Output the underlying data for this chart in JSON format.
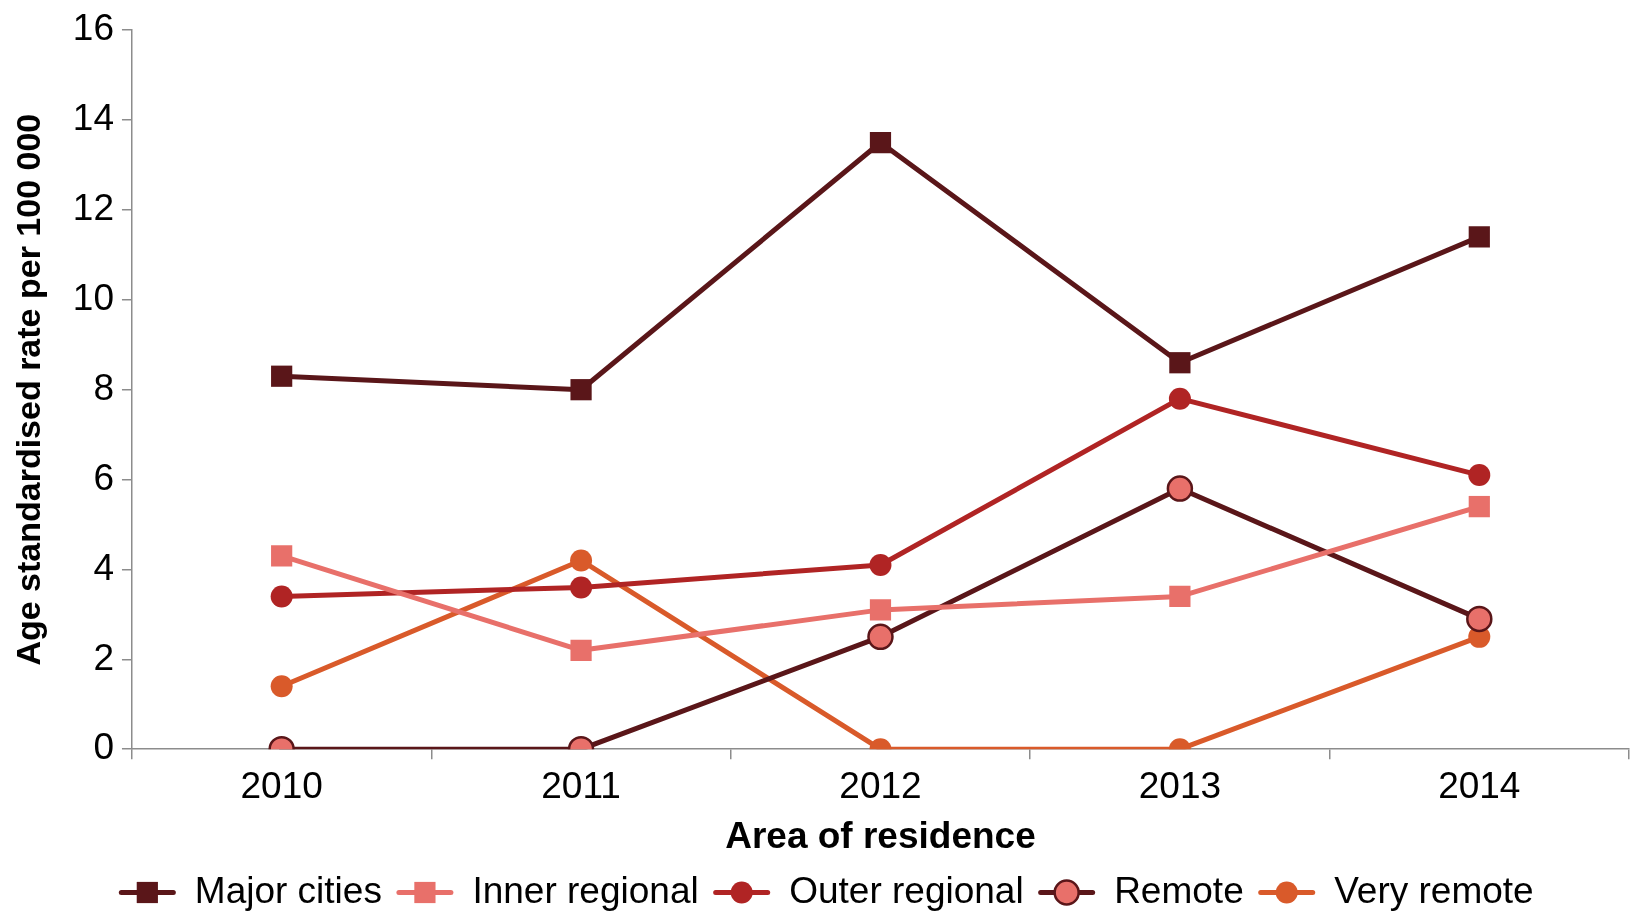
{
  "chart_data": {
    "type": "line",
    "xlabel": "Area of residence",
    "ylabel": "Age standardised rate per 100 000",
    "categories": [
      "2010",
      "2011",
      "2012",
      "2013",
      "2014"
    ],
    "series": [
      {
        "name": "Major cities",
        "color": "#5a1619",
        "marker": "square",
        "values": [
          8.3,
          8.0,
          13.5,
          8.6,
          11.4
        ]
      },
      {
        "name": "Inner regional",
        "color": "#e8706a",
        "marker": "square",
        "values": [
          4.3,
          2.2,
          3.1,
          3.4,
          5.4
        ]
      },
      {
        "name": "Outer regional",
        "color": "#b02424",
        "marker": "circle",
        "values": [
          3.4,
          3.6,
          4.1,
          7.8,
          6.1
        ]
      },
      {
        "name": "Remote",
        "color": "#5a1619",
        "colors": [
          "#e8706a",
          "#e8706a",
          "#e8706a",
          "#e8706a",
          "#e8706a"
        ],
        "marker": "circle",
        "values": [
          0,
          0,
          2.5,
          5.8,
          2.9
        ]
      },
      {
        "name": "Very remote",
        "color": "#d95a2a",
        "marker": "circle",
        "values": [
          1.4,
          4.2,
          0,
          0,
          2.5
        ]
      }
    ],
    "ylim": [
      0,
      16
    ],
    "yticks": [
      0,
      2,
      4,
      6,
      8,
      10,
      12,
      14,
      16
    ],
    "grid": false,
    "legend": "bottom"
  }
}
